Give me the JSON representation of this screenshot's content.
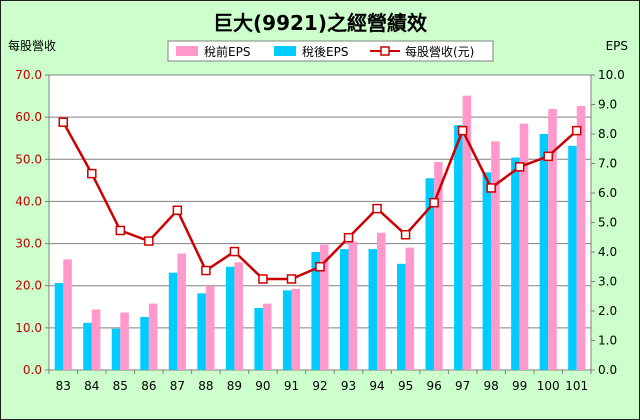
{
  "chart_data": {
    "type": "bar",
    "title": "巨大(9921)之經營績效",
    "ylabel_left": "每股營收",
    "ylabel_right": "EPS",
    "ylim_left": [
      0,
      70
    ],
    "ylim_right": [
      0,
      10
    ],
    "yticks_left": [
      "0.0",
      "10.0",
      "20.0",
      "30.0",
      "40.0",
      "50.0",
      "60.0",
      "70.0"
    ],
    "yticks_right": [
      "0.0",
      "1.0",
      "2.0",
      "3.0",
      "4.0",
      "5.0",
      "6.0",
      "7.0",
      "8.0",
      "9.0",
      "10.0"
    ],
    "categories": [
      "83",
      "84",
      "85",
      "86",
      "87",
      "88",
      "89",
      "90",
      "91",
      "92",
      "93",
      "94",
      "95",
      "96",
      "97",
      "98",
      "99",
      "100",
      "101"
    ],
    "series": [
      {
        "name": "稅前EPS",
        "type": "bar",
        "axis": "right",
        "color": "#ff99cc",
        "values": [
          3.75,
          2.05,
          1.95,
          2.25,
          3.95,
          2.85,
          3.65,
          2.25,
          2.75,
          4.25,
          4.35,
          4.65,
          4.15,
          7.05,
          9.3,
          7.75,
          8.35,
          8.85,
          8.95
        ]
      },
      {
        "name": "稅後EPS",
        "type": "bar",
        "axis": "right",
        "color": "#00ccff",
        "values": [
          2.95,
          1.6,
          1.4,
          1.8,
          3.3,
          2.6,
          3.5,
          2.1,
          2.7,
          4.0,
          4.1,
          4.1,
          3.6,
          6.5,
          8.3,
          6.7,
          7.2,
          8.0,
          7.6
        ]
      },
      {
        "name": "每股營收(元)",
        "type": "line",
        "axis": "left",
        "color": "#cc0000",
        "values": [
          58.8,
          46.6,
          33.1,
          30.6,
          37.9,
          23.6,
          28.1,
          21.6,
          21.6,
          24.5,
          31.4,
          38.3,
          32.1,
          39.7,
          56.8,
          43.2,
          48.2,
          50.7,
          56.8
        ]
      }
    ],
    "legend": "top",
    "grid": true
  }
}
